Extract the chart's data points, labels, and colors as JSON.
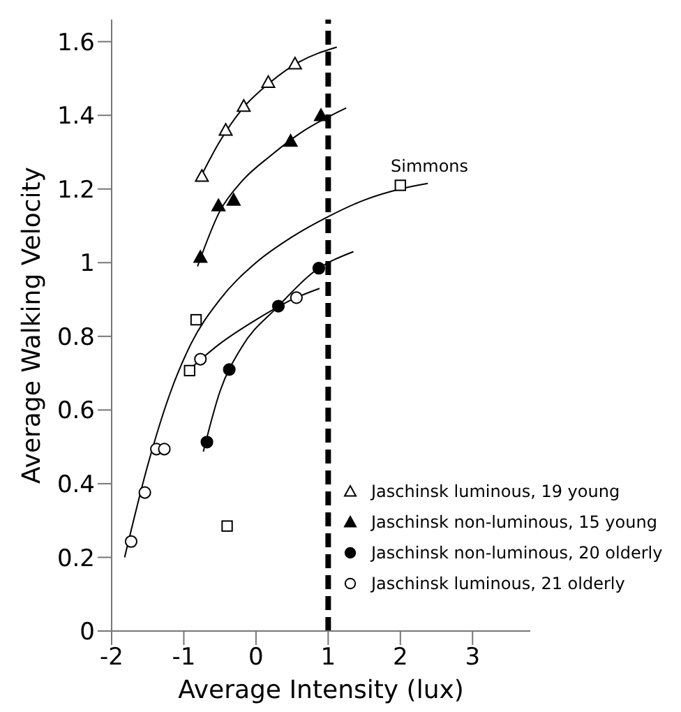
{
  "chart_data": {
    "type": "scatter",
    "xlabel": "Average Intensity (lux)",
    "ylabel": "Average Walking Velocity",
    "xlim": [
      -2,
      3.8
    ],
    "xticks": [
      -2,
      -1,
      0,
      1,
      2,
      3
    ],
    "ylim": [
      0,
      1.66
    ],
    "yticks": [
      0,
      0.2,
      0.4,
      0.6,
      0.8,
      1.0,
      1.2,
      1.4,
      1.6
    ],
    "legend": "bottom right",
    "annotations": [
      "Simmons"
    ],
    "ref_lines": [
      {
        "axis": "x",
        "value": 1,
        "color": "#000000",
        "line_style": "dashed"
      }
    ],
    "series": [
      {
        "name": "Jaschinsk luminous, 19 young",
        "marker": "triangle",
        "color": "#ffffff",
        "x": [
          -0.75,
          -0.42,
          -0.17,
          0.17,
          0.54
        ],
        "values": [
          1.235,
          1.36,
          1.425,
          1.49,
          1.54
        ]
      },
      {
        "name": "Jaschinsk non-luminous, 15 young",
        "marker": "triangle",
        "color": "#000000",
        "x": [
          -0.77,
          -0.52,
          -0.31,
          0.48,
          0.9
        ],
        "values": [
          1.015,
          1.155,
          1.17,
          1.33,
          1.4
        ]
      },
      {
        "name": "Jaschinsk non-luminous, 20 olderly",
        "marker": "circle",
        "color": "#000000",
        "x": [
          -0.68,
          -0.37,
          0.31,
          0.87
        ],
        "values": [
          0.513,
          0.71,
          0.882,
          0.985
        ]
      },
      {
        "name": "Jaschinsk luminous, 21 olderly",
        "marker": "circle",
        "color": "#ffffff",
        "x": [
          -1.73,
          -1.54,
          -1.38,
          -1.27,
          -0.77,
          0.56
        ],
        "values": [
          0.243,
          0.376,
          0.494,
          0.494,
          0.738,
          0.905
        ]
      },
      {
        "marker": "square",
        "color": "#ffffff",
        "x": [
          -0.92,
          -0.83,
          -0.4,
          2.0
        ],
        "values": [
          0.707,
          0.845,
          0.285,
          1.21
        ]
      },
      {
        "type": "line",
        "marker": "none",
        "color": "#000000",
        "x": [
          -0.8,
          -0.5,
          -0.2,
          0.2,
          0.6,
          1.12
        ],
        "values": [
          1.22,
          1.33,
          1.415,
          1.49,
          1.545,
          1.585
        ]
      },
      {
        "type": "line",
        "marker": "none",
        "color": "#000000",
        "x": [
          -0.81,
          -0.5,
          -0.2,
          0.2,
          0.6,
          1.25
        ],
        "values": [
          0.99,
          1.14,
          1.22,
          1.29,
          1.35,
          1.42
        ]
      },
      {
        "type": "line",
        "marker": "none",
        "color": "#000000",
        "x": [
          -1.82,
          -1.5,
          -1.2,
          -0.9,
          -0.5,
          0,
          0.5,
          1.0,
          1.5,
          2.0,
          2.38
        ],
        "values": [
          0.2,
          0.45,
          0.64,
          0.78,
          0.9,
          1.0,
          1.07,
          1.125,
          1.17,
          1.2,
          1.215
        ]
      },
      {
        "type": "line",
        "marker": "none",
        "color": "#000000",
        "x": [
          -0.73,
          -0.5,
          -0.2,
          0.3,
          0.8,
          1.35
        ],
        "values": [
          0.487,
          0.65,
          0.77,
          0.88,
          0.975,
          1.03
        ]
      },
      {
        "type": "line",
        "marker": "none",
        "color": "#000000",
        "x": [
          -0.98,
          -0.5,
          0,
          0.5,
          0.88
        ],
        "values": [
          0.7,
          0.78,
          0.845,
          0.9,
          0.93
        ]
      }
    ]
  }
}
